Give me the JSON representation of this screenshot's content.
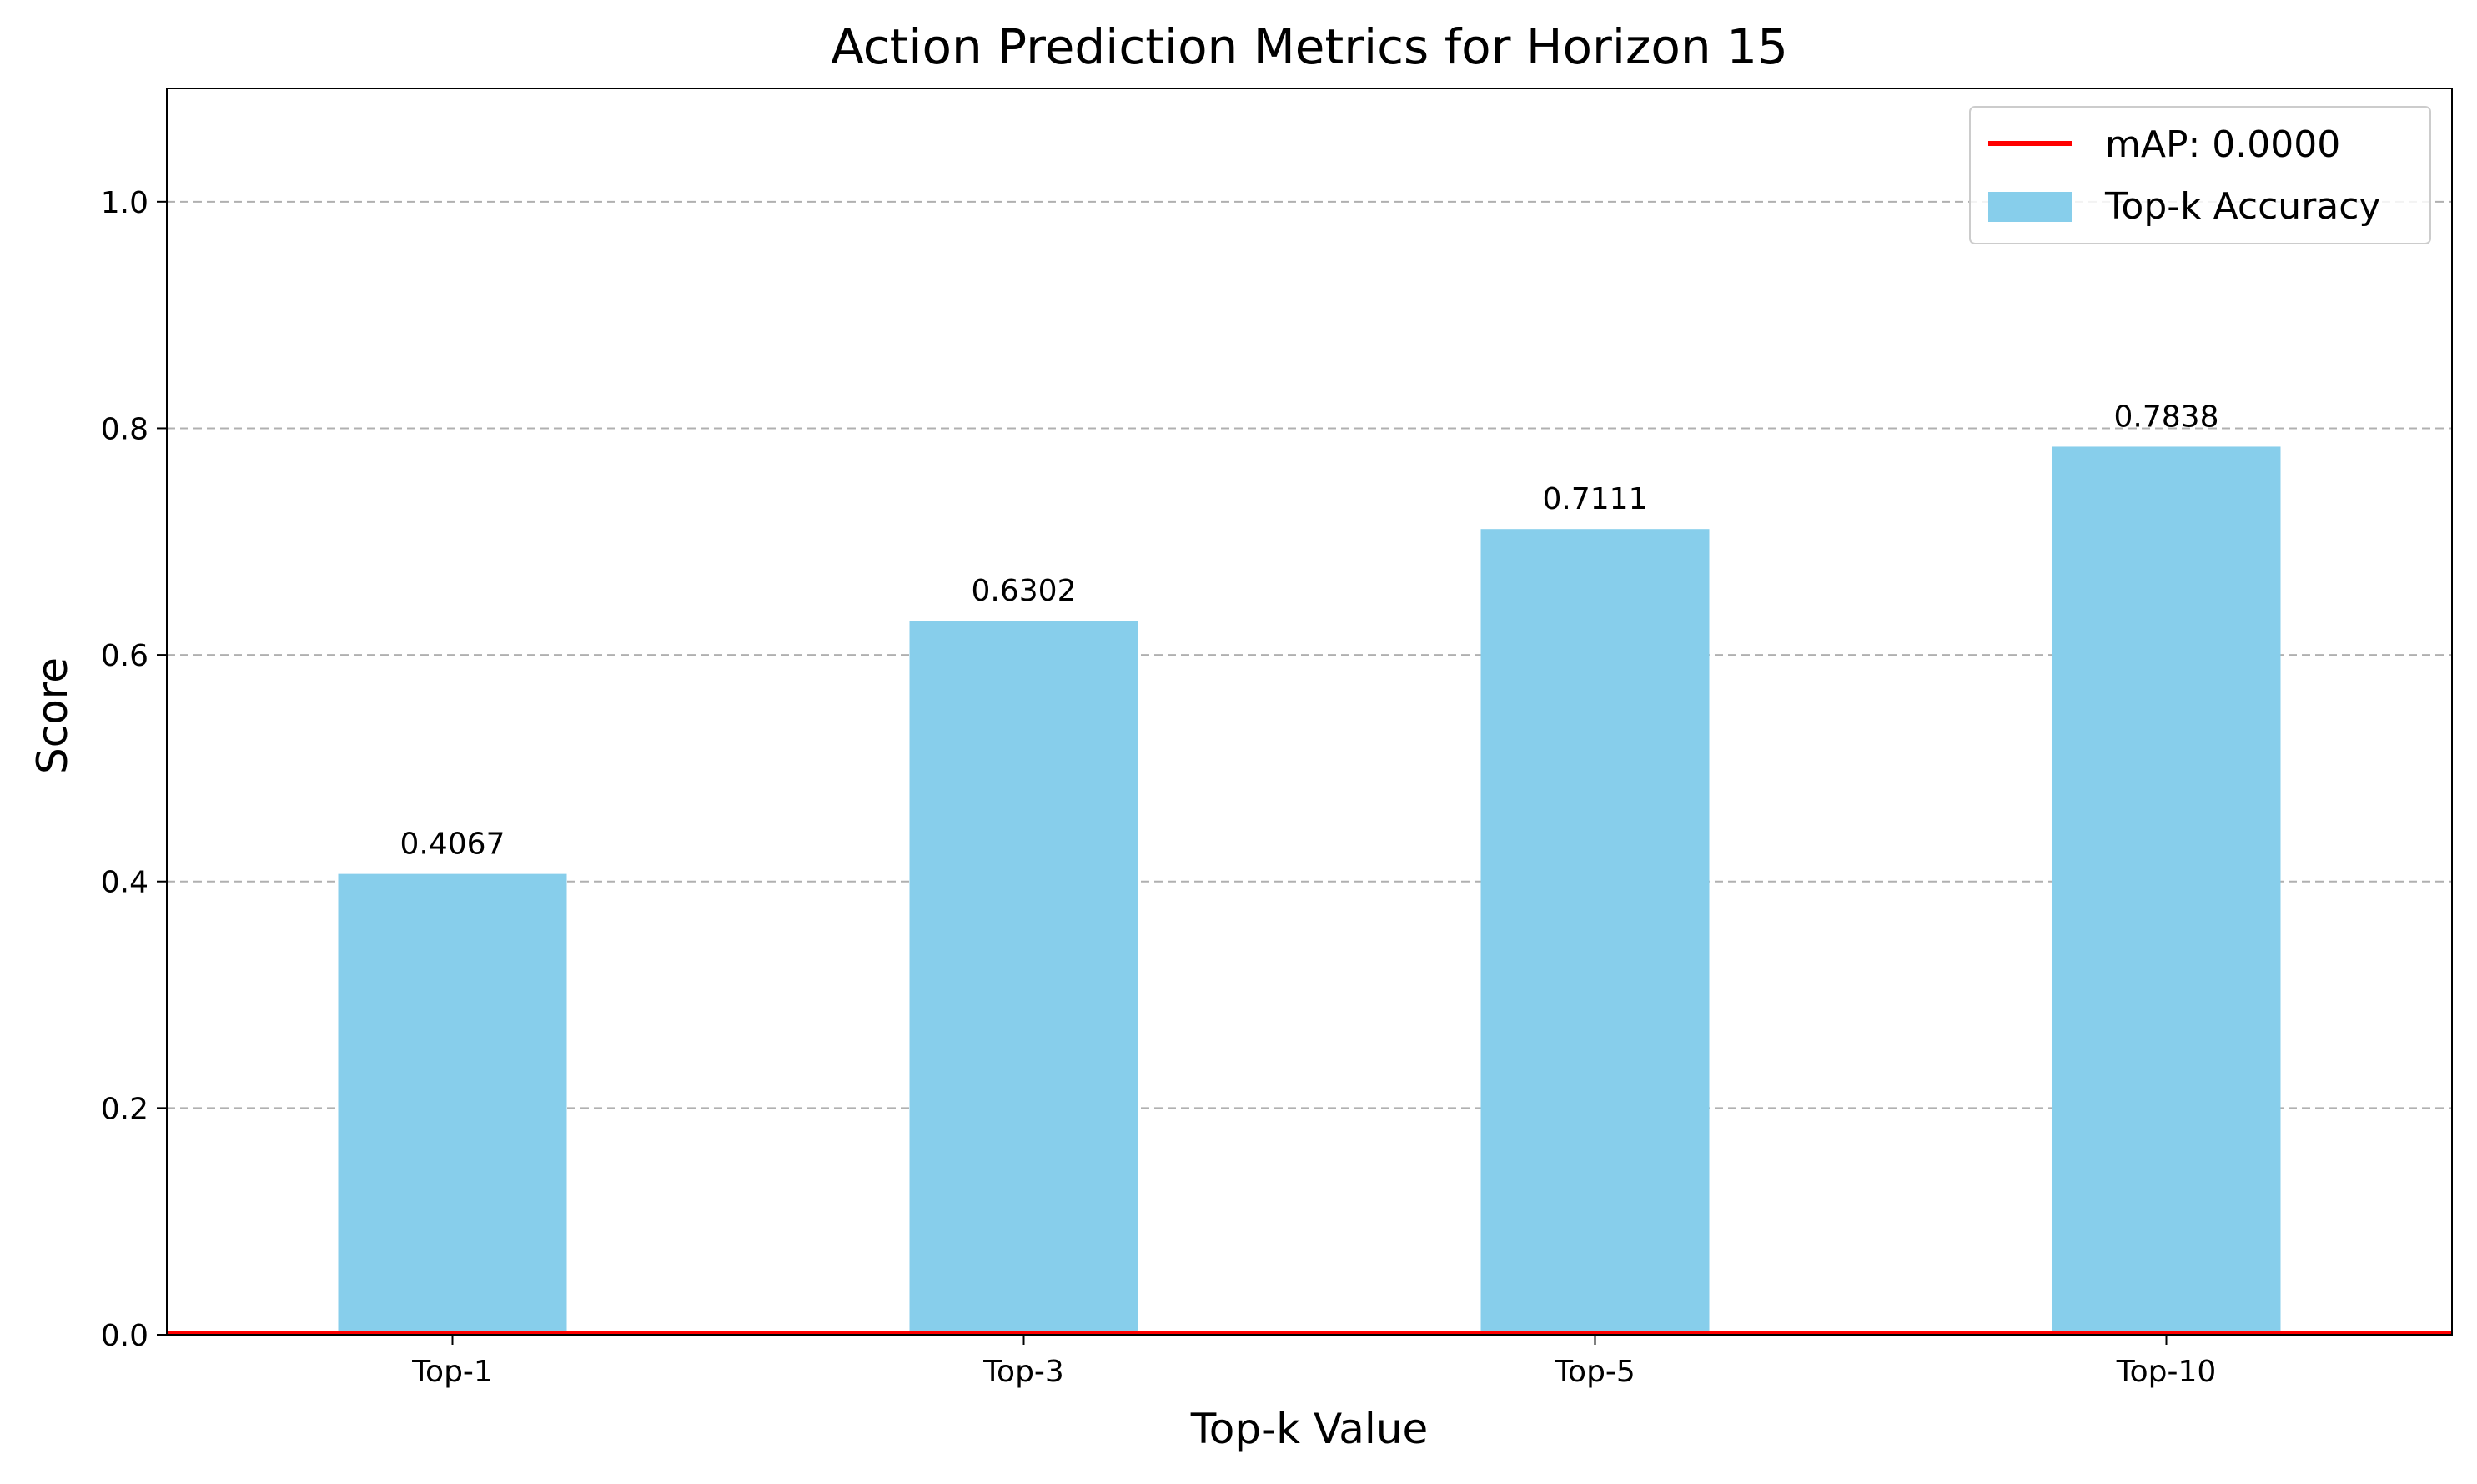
{
  "chart_data": {
    "type": "bar",
    "title": "Action Prediction Metrics for Horizon 15",
    "xlabel": "Top-k Value",
    "ylabel": "Score",
    "categories": [
      "Top-1",
      "Top-3",
      "Top-5",
      "Top-10"
    ],
    "series": [
      {
        "name": "Top-k Accuracy",
        "values": [
          0.4067,
          0.6302,
          0.7111,
          0.7838
        ],
        "color": "#87CEEB"
      }
    ],
    "data_labels": [
      "0.4067",
      "0.6302",
      "0.7111",
      "0.7838"
    ],
    "hline": {
      "name": "mAP: 0.0000",
      "value": 0.0,
      "color": "#FF0000"
    },
    "ylim": [
      0,
      1.1
    ],
    "yticks": [
      0.0,
      0.2,
      0.4,
      0.6,
      0.8,
      1.0
    ],
    "ytick_labels": [
      "0.0",
      "0.2",
      "0.4",
      "0.6",
      "0.8",
      "1.0"
    ],
    "grid": {
      "axis": "y",
      "style": "dashed"
    },
    "legend_position": "top-right",
    "legend": [
      "mAP: 0.0000",
      "Top-k Accuracy"
    ]
  }
}
